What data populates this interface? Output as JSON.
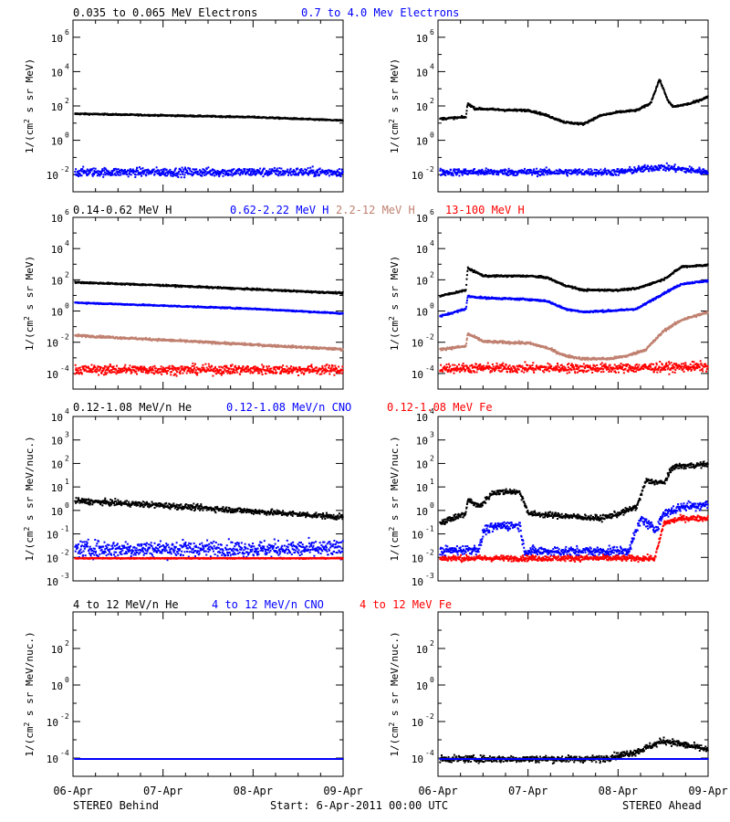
{
  "footer": {
    "left": "STEREO Behind",
    "center": "Start:  6-Apr-2011 00:00 UTC",
    "right": "STEREO Ahead"
  },
  "colors": {
    "black": "#000000",
    "blue": "#0000ff",
    "tan": "#c08070",
    "red": "#ff0000"
  },
  "chart_data": {
    "type": "scatter",
    "x_ticks": [
      "06-Apr",
      "07-Apr",
      "08-Apr",
      "09-Apr"
    ],
    "x_range": [
      "2011-04-06",
      "2011-04-09"
    ],
    "y_scale": "log",
    "rows": [
      {
        "legend": [
          {
            "text": "0.035 to 0.065 MeV Electrons",
            "color": "#000000"
          },
          {
            "text": "0.7 to 4.0 Mev Electrons",
            "color": "#0000ff"
          }
        ],
        "ylabel_main": "1/(cm",
        "ylabel_sup": "2",
        "ylabel_rest": " s sr MeV)",
        "ylim_exp": [
          -3,
          7
        ],
        "ytick_exps": [
          -2,
          0,
          2,
          4,
          6
        ],
        "ytick_labels": [
          "10",
          "10",
          "10",
          "10",
          "10"
        ],
        "ytick_sups": [
          "-2",
          "0",
          "2",
          "4",
          "6"
        ],
        "panels": [
          {
            "side": "STEREO Behind",
            "series": [
              {
                "color": "#000000",
                "x": [
                  0,
                  0.5,
                  1.0,
                  1.5,
                  2.0,
                  2.5,
                  3.0
                ],
                "y_log10": [
                  1.6,
                  1.55,
                  1.5,
                  1.45,
                  1.4,
                  1.3,
                  1.2
                ],
                "scatter": 0.04
              },
              {
                "color": "#0000ff",
                "x": [
                  0,
                  1,
                  2,
                  3
                ],
                "y_log10": [
                  -1.8,
                  -1.8,
                  -1.8,
                  -1.8
                ],
                "scatter": 0.25
              }
            ]
          },
          {
            "side": "STEREO Ahead",
            "series": [
              {
                "color": "#000000",
                "x": [
                  0,
                  0.3,
                  0.32,
                  0.4,
                  0.8,
                  1.0,
                  1.2,
                  1.4,
                  1.6,
                  1.8,
                  2.0,
                  2.2,
                  2.35,
                  2.45,
                  2.55,
                  2.6,
                  2.8,
                  3.0
                ],
                "y_log10": [
                  1.3,
                  1.4,
                  2.2,
                  1.9,
                  1.8,
                  1.8,
                  1.5,
                  1.1,
                  1.0,
                  1.5,
                  1.7,
                  1.8,
                  2.2,
                  3.6,
                  2.3,
                  2.0,
                  2.2,
                  2.6
                ],
                "scatter": 0.06
              },
              {
                "color": "#0000ff",
                "x": [
                  0,
                  1,
                  2,
                  2.45,
                  3
                ],
                "y_log10": [
                  -1.8,
                  -1.8,
                  -1.8,
                  -1.5,
                  -1.8
                ],
                "scatter": 0.2
              }
            ]
          }
        ]
      },
      {
        "legend": [
          {
            "text": "0.14-0.62 MeV H",
            "color": "#000000"
          },
          {
            "text": "0.62-2.22 MeV H",
            "color": "#0000ff"
          },
          {
            "text": "2.2-12 MeV H",
            "color": "#c08070"
          },
          {
            "text": "13-100 MeV H",
            "color": "#ff0000"
          }
        ],
        "ylabel_main": "1/(cm",
        "ylabel_sup": "2",
        "ylabel_rest": " s sr MeV)",
        "ylim_exp": [
          -5,
          6
        ],
        "ytick_exps": [
          -4,
          -2,
          0,
          2,
          4,
          6
        ],
        "ytick_labels": [
          "10",
          "10",
          "10",
          "10",
          "10",
          "10"
        ],
        "ytick_sups": [
          "-4",
          "-2",
          "0",
          "2",
          "4",
          "6"
        ],
        "panels": [
          {
            "side": "STEREO Behind",
            "series": [
              {
                "color": "#000000",
                "x": [
                  0,
                  1,
                  2,
                  3
                ],
                "y_log10": [
                  1.9,
                  1.7,
                  1.45,
                  1.2
                ],
                "scatter": 0.05
              },
              {
                "color": "#0000ff",
                "x": [
                  0,
                  1,
                  2,
                  3
                ],
                "y_log10": [
                  0.6,
                  0.4,
                  0.2,
                  -0.1
                ],
                "scatter": 0.04
              },
              {
                "color": "#c08070",
                "x": [
                  0,
                  1,
                  2,
                  3
                ],
                "y_log10": [
                  -1.5,
                  -1.8,
                  -2.1,
                  -2.4
                ],
                "scatter": 0.07
              },
              {
                "color": "#ff0000",
                "x": [
                  0,
                  1,
                  2,
                  3
                ],
                "y_log10": [
                  -3.7,
                  -3.7,
                  -3.7,
                  -3.7
                ],
                "scatter": 0.3
              }
            ]
          },
          {
            "side": "STEREO Ahead",
            "series": [
              {
                "color": "#000000",
                "x": [
                  0,
                  0.3,
                  0.32,
                  0.5,
                  1.0,
                  1.2,
                  1.4,
                  1.6,
                  2.0,
                  2.2,
                  2.5,
                  2.7,
                  3.0
                ],
                "y_log10": [
                  1.0,
                  1.4,
                  2.8,
                  2.3,
                  2.3,
                  2.2,
                  1.7,
                  1.4,
                  1.4,
                  1.5,
                  2.1,
                  2.9,
                  3.0
                ],
                "scatter": 0.06
              },
              {
                "color": "#0000ff",
                "x": [
                  0,
                  0.3,
                  0.32,
                  0.5,
                  1.0,
                  1.2,
                  1.4,
                  1.6,
                  2.0,
                  2.2,
                  2.5,
                  2.7,
                  3.0
                ],
                "y_log10": [
                  -0.3,
                  0.2,
                  1.0,
                  0.9,
                  0.8,
                  0.7,
                  0.2,
                  0.0,
                  0.1,
                  0.2,
                  1.2,
                  1.8,
                  2.0
                ],
                "scatter": 0.06
              },
              {
                "color": "#c08070",
                "x": [
                  0,
                  0.3,
                  0.32,
                  0.5,
                  1.0,
                  1.2,
                  1.4,
                  1.6,
                  1.9,
                  2.1,
                  2.3,
                  2.5,
                  2.7,
                  3.0
                ],
                "y_log10": [
                  -2.4,
                  -2.2,
                  -1.4,
                  -1.9,
                  -2.0,
                  -2.3,
                  -2.8,
                  -3.0,
                  -3.0,
                  -2.8,
                  -2.4,
                  -1.2,
                  -0.5,
                  0.0
                ],
                "scatter": 0.08
              },
              {
                "color": "#ff0000",
                "x": [
                  0,
                  1,
                  2,
                  3
                ],
                "y_log10": [
                  -3.6,
                  -3.6,
                  -3.6,
                  -3.5
                ],
                "scatter": 0.3
              }
            ]
          }
        ]
      },
      {
        "legend": [
          {
            "text": "0.12-1.08 MeV/n He",
            "color": "#000000"
          },
          {
            "text": "0.12-1.08 MeV/n CNO",
            "color": "#0000ff"
          },
          {
            "text": "0.12-1.08 MeV Fe",
            "color": "#ff0000"
          }
        ],
        "ylabel_main": "1/(cm",
        "ylabel_sup": "2",
        "ylabel_rest": " s sr MeV/nuc.)",
        "ylim_exp": [
          -3,
          4
        ],
        "ytick_exps": [
          -3,
          -2,
          -1,
          0,
          1,
          2,
          3,
          4
        ],
        "ytick_labels": [
          "10",
          "10",
          "10",
          "10",
          "10",
          "10",
          "10",
          "10"
        ],
        "ytick_sups": [
          "-3",
          "-2",
          "-1",
          "0",
          "1",
          "2",
          "3",
          "4"
        ],
        "panels": [
          {
            "side": "STEREO Behind",
            "series": [
              {
                "color": "#000000",
                "x": [
                  0,
                  1,
                  2,
                  3
                ],
                "y_log10": [
                  0.45,
                  0.25,
                  0.0,
                  -0.25
                ],
                "scatter": 0.12
              },
              {
                "color": "#0000ff",
                "x": [
                  0,
                  1,
                  2,
                  3
                ],
                "y_log10": [
                  -1.6,
                  -1.6,
                  -1.6,
                  -1.6
                ],
                "scatter": 0.35
              },
              {
                "color": "#ff0000",
                "x": [
                  0,
                  1,
                  2,
                  3
                ],
                "y_log10": [
                  -2.0,
                  -2.0,
                  -2.0,
                  -2.0
                ],
                "scatter": 0.02
              }
            ]
          },
          {
            "side": "STEREO Ahead",
            "series": [
              {
                "color": "#000000",
                "x": [
                  0,
                  0.3,
                  0.32,
                  0.45,
                  0.6,
                  0.8,
                  0.9,
                  1.0,
                  1.4,
                  1.8,
                  2.0,
                  2.2,
                  2.3,
                  2.5,
                  2.6,
                  3.0
                ],
                "y_log10": [
                  -0.5,
                  -0.1,
                  0.5,
                  0.2,
                  0.8,
                  0.85,
                  0.8,
                  -0.1,
                  -0.2,
                  -0.3,
                  -0.1,
                  0.2,
                  1.3,
                  1.2,
                  1.9,
                  2.0
                ],
                "scatter": 0.12
              },
              {
                "color": "#0000ff",
                "x": [
                  0,
                  0.45,
                  0.5,
                  0.7,
                  0.9,
                  0.95,
                  2.1,
                  2.25,
                  2.4,
                  2.5,
                  2.7,
                  3.0
                ],
                "y_log10": [
                  -1.7,
                  -1.6,
                  -0.8,
                  -0.6,
                  -0.6,
                  -1.7,
                  -1.7,
                  -0.3,
                  -0.8,
                  -0.1,
                  0.2,
                  0.3
                ],
                "scatter": 0.2
              },
              {
                "color": "#ff0000",
                "x": [
                  0,
                  1,
                  2,
                  2.4,
                  2.5,
                  2.7,
                  3.0
                ],
                "y_log10": [
                  -2.0,
                  -2.0,
                  -2.0,
                  -2.0,
                  -0.5,
                  -0.3,
                  -0.3
                ],
                "scatter": 0.12
              }
            ]
          }
        ]
      },
      {
        "legend": [
          {
            "text": "4 to 12 MeV/n He",
            "color": "#000000"
          },
          {
            "text": "4 to 12 MeV/n CNO",
            "color": "#0000ff"
          },
          {
            "text": "4 to 12 MeV Fe",
            "color": "#ff0000"
          }
        ],
        "ylabel_main": "1/(cm",
        "ylabel_sup": "2",
        "ylabel_rest": " s sr MeV/nuc.)",
        "ylim_exp": [
          -5,
          4
        ],
        "ytick_exps": [
          -4,
          -2,
          0,
          2
        ],
        "ytick_labels": [
          "10",
          "10",
          "10",
          "10"
        ],
        "ytick_sups": [
          "-4",
          "-2",
          "0",
          "2"
        ],
        "panels": [
          {
            "side": "STEREO Behind",
            "series": [
              {
                "color": "#000000",
                "x": [
                  0,
                  1,
                  2,
                  3
                ],
                "y_log10": [
                  -4.0,
                  -4.0,
                  -4.0,
                  -4.0
                ],
                "scatter": 0.0
              },
              {
                "color": "#0000ff",
                "x": [
                  0,
                  1,
                  2,
                  3
                ],
                "y_log10": [
                  -4.0,
                  -4.0,
                  -4.0,
                  -4.0
                ],
                "scatter": 0.0
              }
            ]
          },
          {
            "side": "STEREO Ahead",
            "series": [
              {
                "color": "#000000",
                "x": [
                  0,
                  1.8,
                  2.2,
                  2.5,
                  2.7,
                  3.0
                ],
                "y_log10": [
                  -4.0,
                  -4.0,
                  -3.6,
                  -3.0,
                  -3.2,
                  -3.5
                ],
                "scatter": 0.18
              },
              {
                "color": "#0000ff",
                "x": [
                  0,
                  1,
                  2,
                  3
                ],
                "y_log10": [
                  -4.0,
                  -4.0,
                  -4.0,
                  -4.0
                ],
                "scatter": 0.0
              }
            ]
          }
        ]
      }
    ]
  }
}
